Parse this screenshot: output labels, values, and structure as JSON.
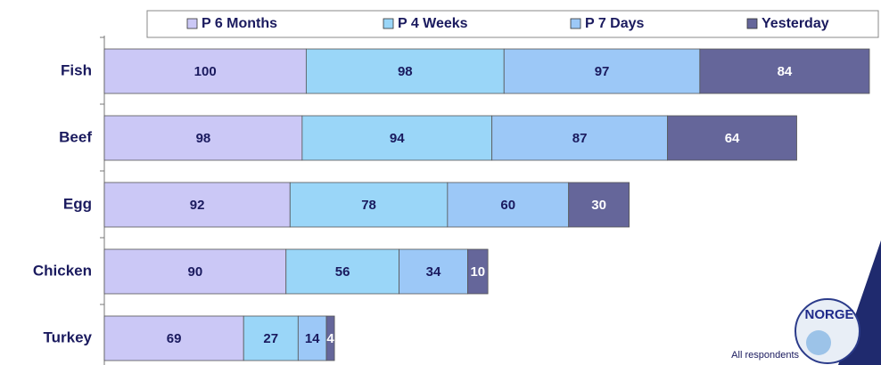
{
  "chart_data": {
    "type": "stacked_barh",
    "categories": [
      "Fish",
      "Beef",
      "Egg",
      "Chicken",
      "Turkey"
    ],
    "series": [
      {
        "name": "P 6 Months",
        "color": "#cbc8f6",
        "values": [
          100,
          98,
          92,
          90,
          69
        ]
      },
      {
        "name": "P 4 Weeks",
        "color": "#9ad6f8",
        "values": [
          98,
          94,
          78,
          56,
          27
        ]
      },
      {
        "name": "P 7 Days",
        "color": "#9cc8f7",
        "values": [
          97,
          87,
          60,
          34,
          14
        ]
      },
      {
        "name": "Yesterday",
        "color": "#65669a",
        "values": [
          84,
          64,
          30,
          10,
          4
        ]
      }
    ],
    "legend": "top",
    "footnote": "All respondents",
    "logo": "NORGE"
  }
}
